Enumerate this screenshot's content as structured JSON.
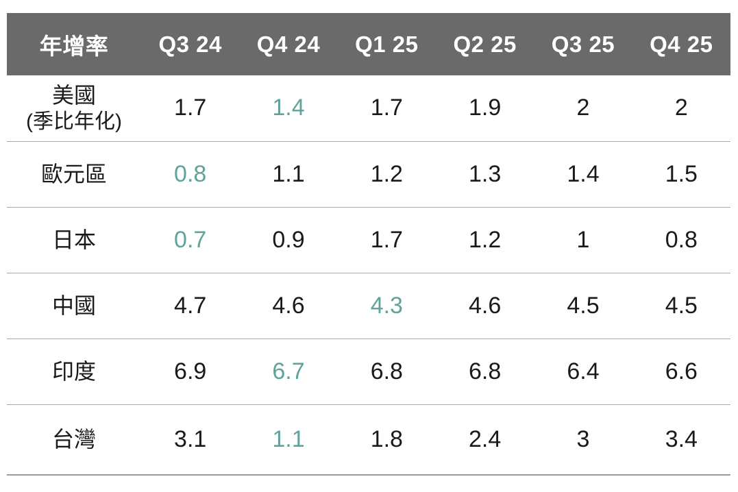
{
  "table": {
    "header": [
      "年增率",
      "Q3 24",
      "Q4 24",
      "Q1 25",
      "Q2 25",
      "Q3 25",
      "Q4 25"
    ],
    "rows": [
      {
        "label": "美國",
        "sublabel": "(季比年化)",
        "values": [
          "1.7",
          "1.4",
          "1.7",
          "1.9",
          "2",
          "2"
        ],
        "highlight_index": 1
      },
      {
        "label": "歐元區",
        "sublabel": "",
        "values": [
          "0.8",
          "1.1",
          "1.2",
          "1.3",
          "1.4",
          "1.5"
        ],
        "highlight_index": 0
      },
      {
        "label": "日本",
        "sublabel": "",
        "values": [
          "0.7",
          "0.9",
          "1.7",
          "1.2",
          "1",
          "0.8"
        ],
        "highlight_index": 0
      },
      {
        "label": "中國",
        "sublabel": "",
        "values": [
          "4.7",
          "4.6",
          "4.3",
          "4.6",
          "4.5",
          "4.5"
        ],
        "highlight_index": 2
      },
      {
        "label": "印度",
        "sublabel": "",
        "values": [
          "6.9",
          "6.7",
          "6.8",
          "6.8",
          "6.4",
          "6.6"
        ],
        "highlight_index": 1
      },
      {
        "label": "台灣",
        "sublabel": "",
        "values": [
          "3.1",
          "1.1",
          "1.8",
          "2.4",
          "3",
          "3.4"
        ],
        "highlight_index": 1
      }
    ]
  },
  "colors": {
    "header_bg": "#6a6a6a",
    "header_text": "#ffffff",
    "body_text": "#1a1a1a",
    "highlight_text": "#5fa39b",
    "divider": "#a8a8a8"
  },
  "chart_data": {
    "type": "table",
    "title": "年增率 (GDP annual growth rate forecast by quarter)",
    "columns": [
      "年增率",
      "Q3 24",
      "Q4 24",
      "Q1 25",
      "Q2 25",
      "Q3 25",
      "Q4 25"
    ],
    "rows": [
      [
        "美國 (季比年化)",
        1.7,
        1.4,
        1.7,
        1.9,
        2,
        2
      ],
      [
        "歐元區",
        0.8,
        1.1,
        1.2,
        1.3,
        1.4,
        1.5
      ],
      [
        "日本",
        0.7,
        0.9,
        1.7,
        1.2,
        1,
        0.8
      ],
      [
        "中國",
        4.7,
        4.6,
        4.3,
        4.6,
        4.5,
        4.5
      ],
      [
        "印度",
        6.9,
        6.7,
        6.8,
        6.8,
        6.4,
        6.6
      ],
      [
        "台灣",
        3.1,
        1.1,
        1.8,
        2.4,
        3,
        3.4
      ]
    ],
    "highlighted_cells_teal": [
      {
        "row": "美國 (季比年化)",
        "column": "Q4 24",
        "value": 1.4
      },
      {
        "row": "歐元區",
        "column": "Q3 24",
        "value": 0.8
      },
      {
        "row": "日本",
        "column": "Q3 24",
        "value": 0.7
      },
      {
        "row": "中國",
        "column": "Q1 25",
        "value": 4.3
      },
      {
        "row": "印度",
        "column": "Q4 24",
        "value": 6.7
      },
      {
        "row": "台灣",
        "column": "Q4 24",
        "value": 1.1
      }
    ],
    "layout": {
      "header_bg": "#6a6a6a",
      "grid": "horizontal-dividers-only"
    }
  }
}
